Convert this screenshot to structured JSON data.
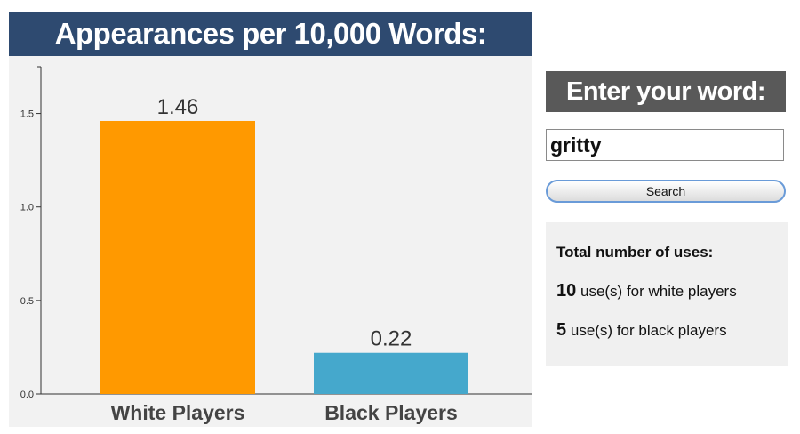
{
  "chart_data": {
    "type": "bar",
    "title": "Appearances per 10,000 Words:",
    "categories": [
      "White Players",
      "Black Players"
    ],
    "values": [
      1.46,
      0.22
    ],
    "data_labels": [
      "1.46",
      "0.22"
    ],
    "yticks": [
      "0.0",
      "0.5",
      "1.0",
      "1.5"
    ],
    "ytick_values": [
      0,
      0.5,
      1.0,
      1.5
    ],
    "ylim": [
      0,
      1.75
    ],
    "grid": false,
    "colors": [
      "#ff9900",
      "#45a8cc"
    ]
  },
  "search": {
    "title": "Enter your word:",
    "value": "gritty",
    "button_label": "Search"
  },
  "stats": {
    "heading": "Total number of uses:",
    "white_count": "10",
    "white_text": "use(s) for white players",
    "black_count": "5",
    "black_text": "use(s) for black players"
  }
}
